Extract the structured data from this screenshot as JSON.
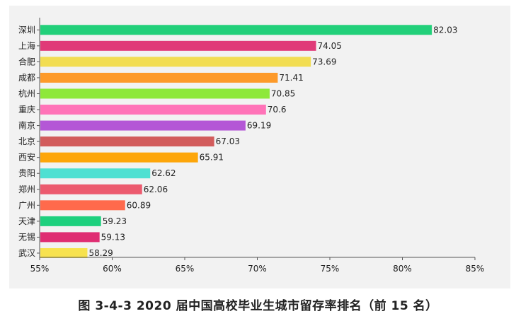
{
  "caption": "图 3-4-3 2020 届中国高校毕业生城市留存率排名（前 15 名）",
  "chart_data": {
    "type": "bar",
    "orientation": "horizontal",
    "title": "图 3-4-3 2020 届中国高校毕业生城市留存率排名（前 15 名）",
    "xlabel": "",
    "ylabel": "",
    "xlim": [
      55,
      85
    ],
    "x_ticks": [
      "55%",
      "60%",
      "65%",
      "70%",
      "75%",
      "80%",
      "85%"
    ],
    "x_tick_values": [
      55,
      60,
      65,
      70,
      75,
      80,
      85
    ],
    "grid": false,
    "categories": [
      "深圳",
      "上海",
      "合肥",
      "成都",
      "杭州",
      "重庆",
      "南京",
      "北京",
      "西安",
      "贵阳",
      "郑州",
      "广州",
      "天津",
      "无锡",
      "武汉"
    ],
    "values": [
      82.03,
      74.05,
      73.69,
      71.41,
      70.85,
      70.6,
      69.19,
      67.03,
      65.91,
      62.62,
      62.06,
      60.89,
      59.23,
      59.13,
      58.29
    ],
    "value_labels": [
      "82.03",
      "74.05",
      "73.69",
      "71.41",
      "70.85",
      "70.6",
      "69.19",
      "67.03",
      "65.91",
      "62.62",
      "62.06",
      "60.89",
      "59.23",
      "59.13",
      "58.29"
    ],
    "colors": [
      "#22d07a",
      "#e03a78",
      "#f2dd52",
      "#fd9a2a",
      "#8ee83a",
      "#ff73b8",
      "#b457d6",
      "#d25c5c",
      "#fda60a",
      "#4fe0d2",
      "#ec5a6e",
      "#ff6a4c",
      "#1ed07e",
      "#df2d72",
      "#f7e24e"
    ]
  }
}
